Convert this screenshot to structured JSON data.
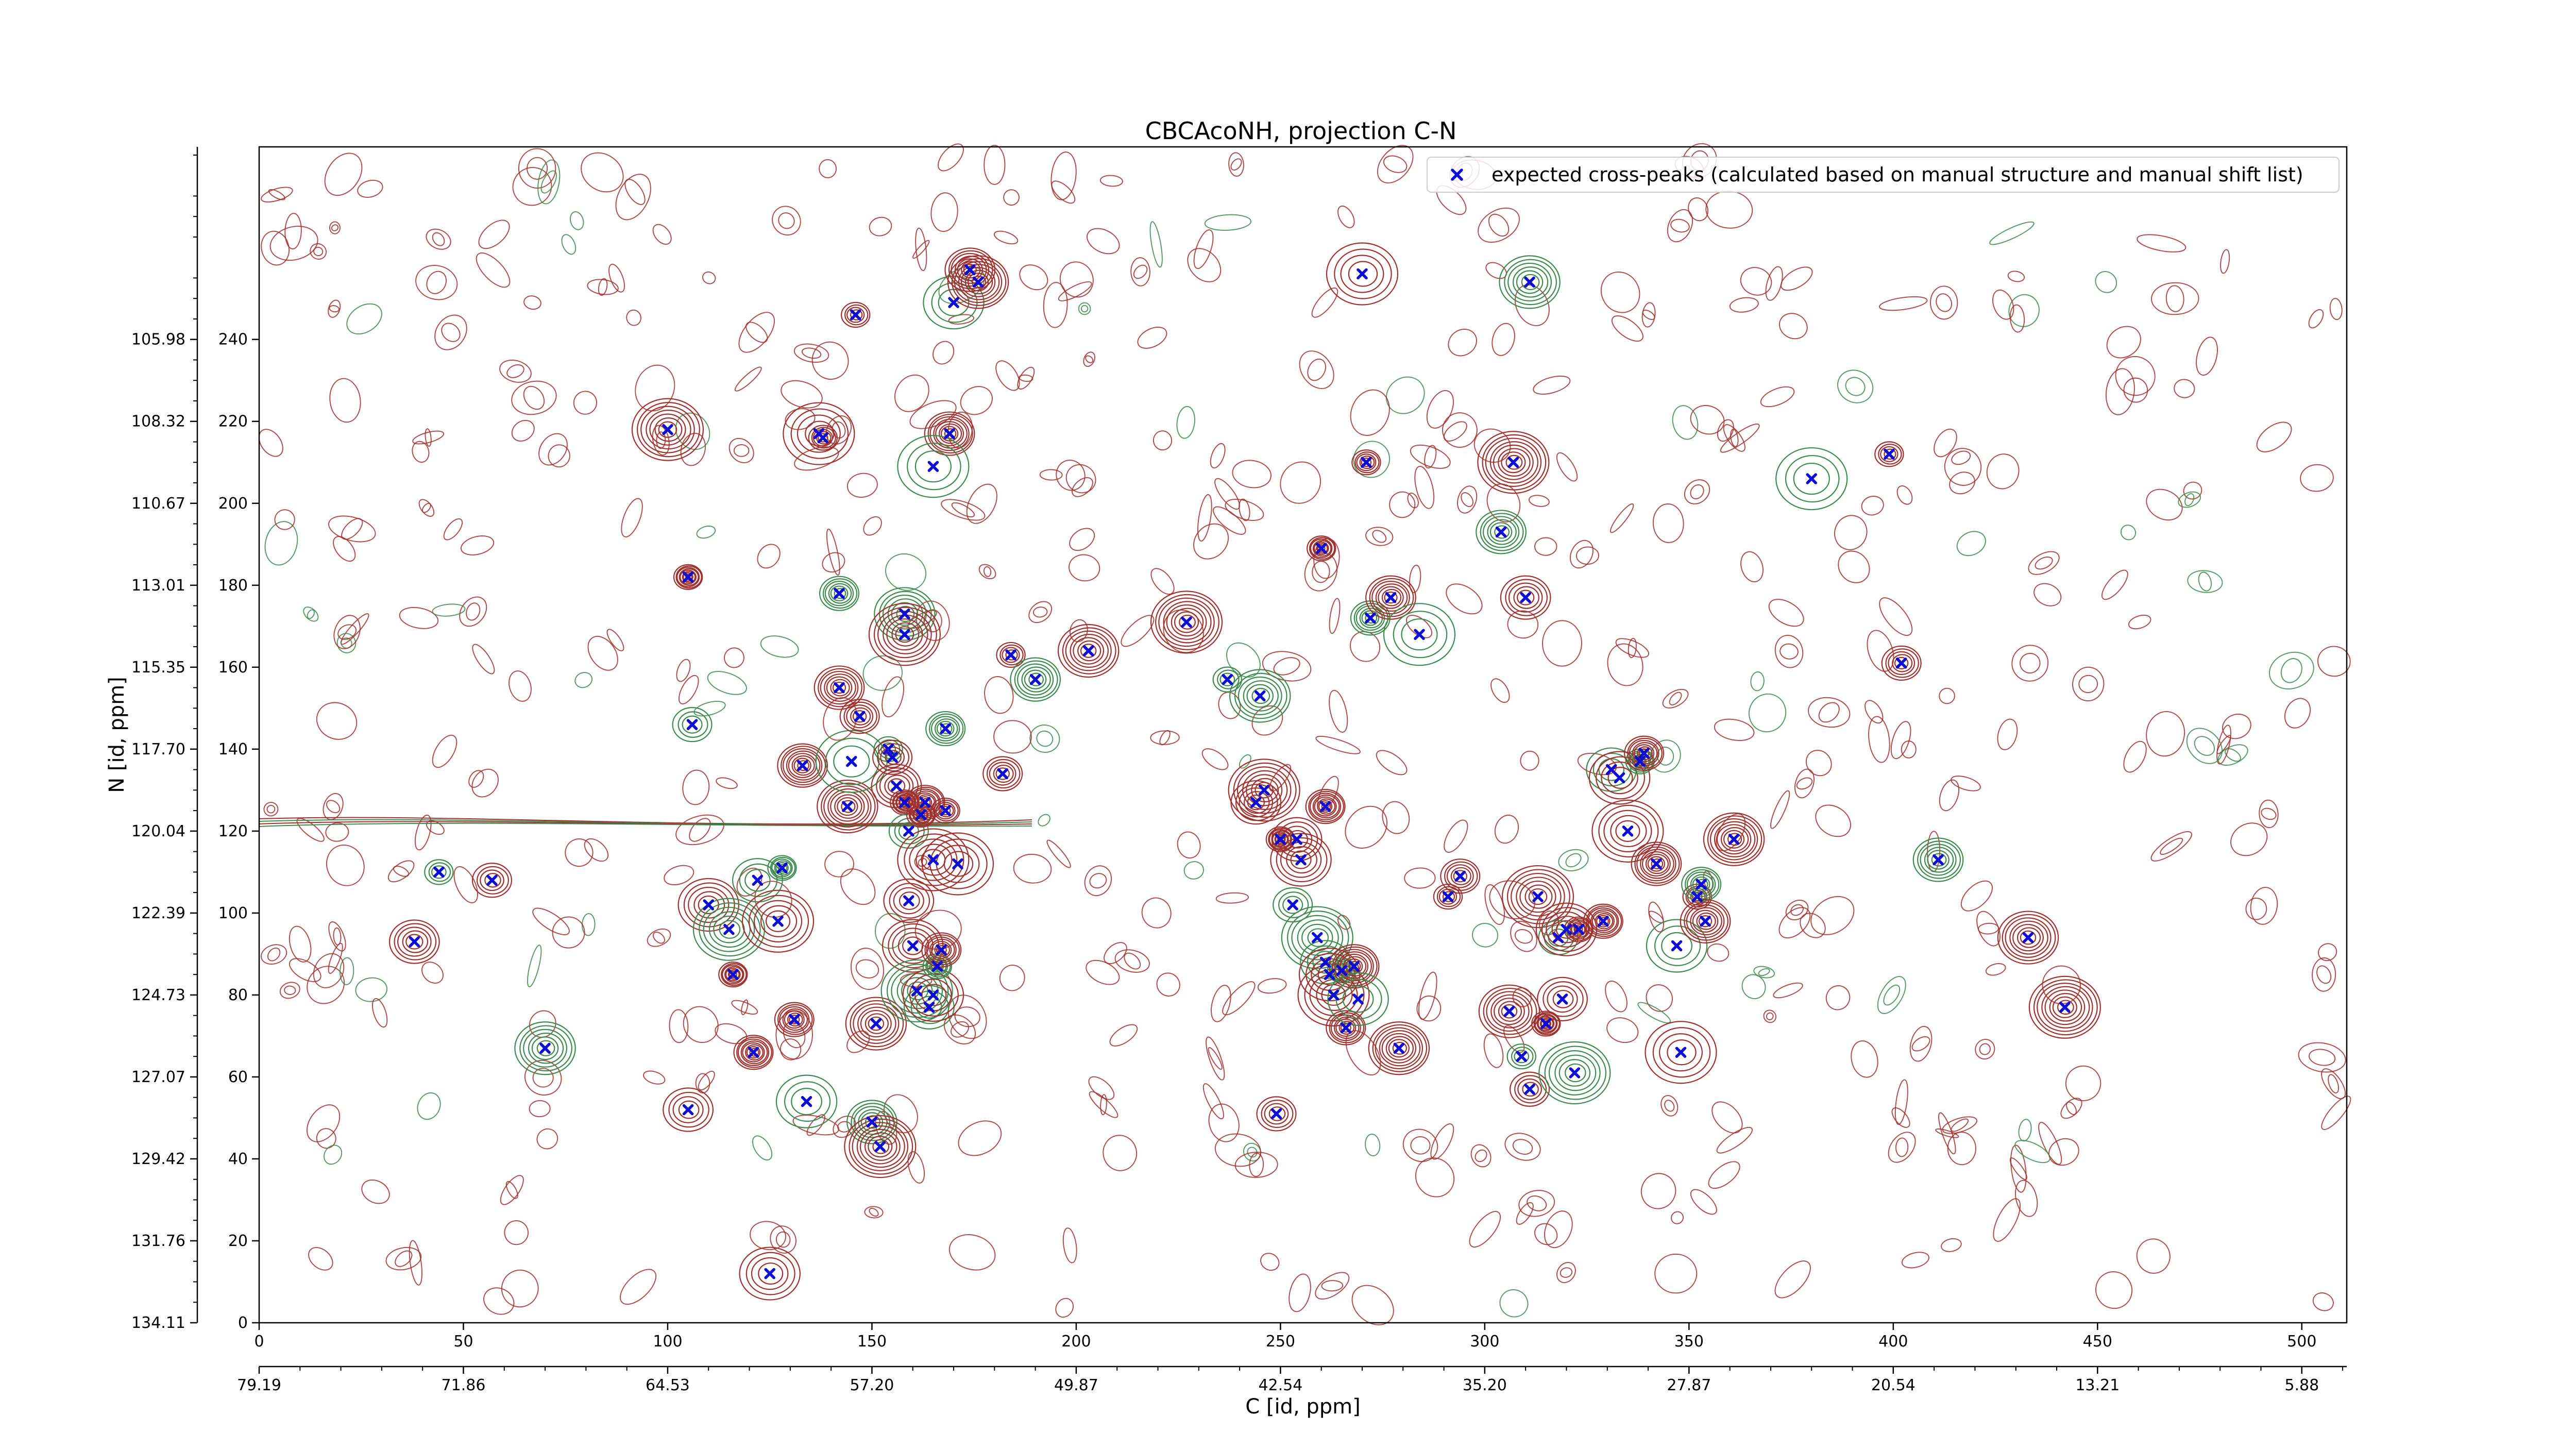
{
  "chart_data": {
    "type": "scatter",
    "title": "CBCAcoNH, projection C-N",
    "xlabel": "C [id, ppm]",
    "ylabel": "N [id, ppm]",
    "xlim": [
      0,
      511
    ],
    "ylim": [
      0,
      287
    ],
    "x_index_ticks": [
      "0",
      "50",
      "100",
      "150",
      "200",
      "250",
      "300",
      "350",
      "400",
      "450",
      "500"
    ],
    "x_ppm_ticks": [
      "79.19",
      "71.86",
      "64.53",
      "57.20",
      "49.87",
      "42.54",
      "35.20",
      "27.87",
      "20.54",
      "13.21",
      "5.88"
    ],
    "y_index_ticks": [
      "0",
      "20",
      "40",
      "60",
      "80",
      "100",
      "120",
      "140",
      "160",
      "180",
      "200",
      "220",
      "240"
    ],
    "y_ppm_ticks": [
      "134.11",
      "131.76",
      "129.42",
      "127.07",
      "124.73",
      "122.39",
      "120.04",
      "117.70",
      "115.35",
      "113.01",
      "110.67",
      "108.32",
      "105.98"
    ],
    "legend": {
      "position": "top-right"
    },
    "colors": {
      "positive_contour": "#a0302d",
      "negative_contour": "#3d8a4e",
      "peak_marker": "#0a0ad6"
    },
    "series": [
      {
        "name": "expected cross-peaks (calculated based on manual structure and manual shift list)",
        "marker": "x",
        "points": [
          [
            44,
            110
          ],
          [
            57,
            108
          ],
          [
            38,
            93
          ],
          [
            70,
            67
          ],
          [
            100,
            218
          ],
          [
            105,
            182
          ],
          [
            106,
            146
          ],
          [
            105,
            52
          ],
          [
            110,
            102
          ],
          [
            115,
            96
          ],
          [
            116,
            85
          ],
          [
            121,
            66
          ],
          [
            122,
            108
          ],
          [
            125,
            12
          ],
          [
            127,
            98
          ],
          [
            128,
            111
          ],
          [
            131,
            74
          ],
          [
            133,
            136
          ],
          [
            134,
            54
          ],
          [
            137,
            217
          ],
          [
            138,
            216
          ],
          [
            142,
            178
          ],
          [
            142,
            155
          ],
          [
            144,
            126
          ],
          [
            145,
            137
          ],
          [
            146,
            246
          ],
          [
            147,
            148
          ],
          [
            150,
            49
          ],
          [
            151,
            73
          ],
          [
            152,
            43
          ],
          [
            154,
            140
          ],
          [
            155,
            138
          ],
          [
            156,
            131
          ],
          [
            158,
            173
          ],
          [
            158,
            168
          ],
          [
            158,
            127
          ],
          [
            159,
            120
          ],
          [
            159,
            103
          ],
          [
            160,
            92
          ],
          [
            161,
            81
          ],
          [
            162,
            124
          ],
          [
            163,
            127
          ],
          [
            164,
            77
          ],
          [
            165,
            80
          ],
          [
            165,
            113
          ],
          [
            166,
            87
          ],
          [
            167,
            91
          ],
          [
            169,
            217
          ],
          [
            170,
            249
          ],
          [
            171,
            112
          ],
          [
            168,
            125
          ],
          [
            168,
            145
          ],
          [
            174,
            257
          ],
          [
            176,
            254
          ],
          [
            165,
            209
          ],
          [
            184,
            163
          ],
          [
            182,
            134
          ],
          [
            190,
            157
          ],
          [
            203,
            164
          ],
          [
            227,
            171
          ],
          [
            237,
            157
          ],
          [
            249,
            51
          ],
          [
            244,
            127
          ],
          [
            245,
            153
          ],
          [
            246,
            130
          ],
          [
            250,
            118
          ],
          [
            253,
            102
          ],
          [
            254,
            118
          ],
          [
            255,
            113
          ],
          [
            259,
            94
          ],
          [
            260,
            189
          ],
          [
            261,
            126
          ],
          [
            261,
            88
          ],
          [
            262,
            85
          ],
          [
            263,
            80
          ],
          [
            265,
            86
          ],
          [
            266,
            72
          ],
          [
            268,
            87
          ],
          [
            269,
            79
          ],
          [
            270,
            256
          ],
          [
            271,
            210
          ],
          [
            272,
            172
          ],
          [
            277,
            177
          ],
          [
            279,
            67
          ],
          [
            284,
            168
          ],
          [
            291,
            104
          ],
          [
            294,
            109
          ],
          [
            304,
            193
          ],
          [
            306,
            76
          ],
          [
            307,
            210
          ],
          [
            309,
            65
          ],
          [
            311,
            57
          ],
          [
            310,
            177
          ],
          [
            311,
            254
          ],
          [
            313,
            104
          ],
          [
            315,
            73
          ],
          [
            318,
            94
          ],
          [
            319,
            79
          ],
          [
            320,
            96
          ],
          [
            322,
            61
          ],
          [
            323,
            96
          ],
          [
            329,
            98
          ],
          [
            331,
            135
          ],
          [
            333,
            133
          ],
          [
            335,
            120
          ],
          [
            338,
            137
          ],
          [
            339,
            139
          ],
          [
            342,
            112
          ],
          [
            347,
            92
          ],
          [
            348,
            66
          ],
          [
            352,
            104
          ],
          [
            353,
            107
          ],
          [
            354,
            98
          ],
          [
            361,
            118
          ],
          [
            380,
            206
          ],
          [
            399,
            212
          ],
          [
            402,
            161
          ],
          [
            411,
            113
          ],
          [
            433,
            94
          ],
          [
            442,
            77
          ]
        ]
      }
    ]
  }
}
